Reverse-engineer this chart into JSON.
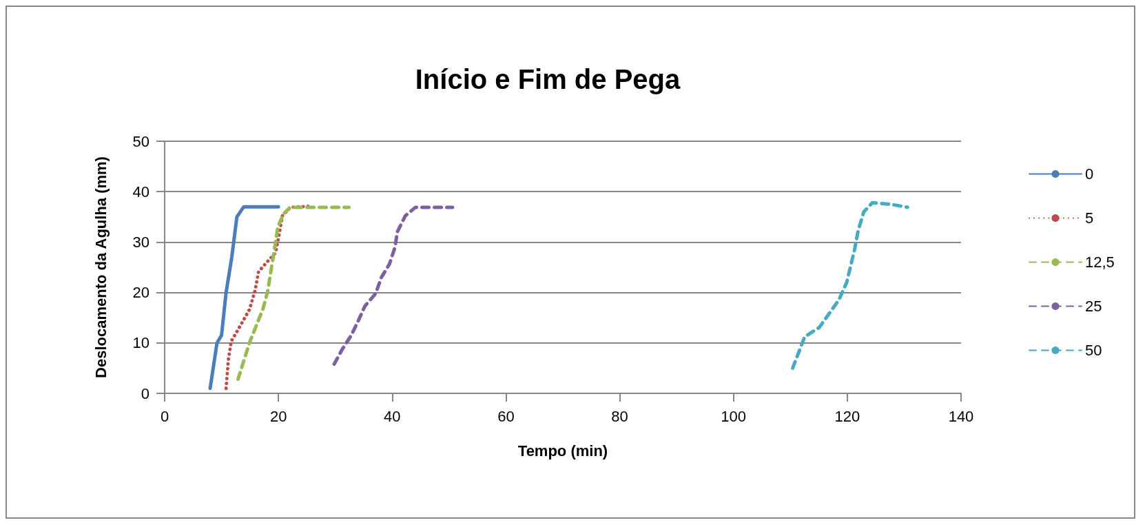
{
  "chart_data": {
    "type": "line",
    "title": "Início e Fim de Pega",
    "xlabel": "Tempo (min)",
    "ylabel": "Deslocamento da Agulha (mm)",
    "xlim": [
      0,
      140
    ],
    "xticks": [
      0,
      20,
      40,
      60,
      80,
      100,
      120,
      140
    ],
    "ylim": [
      0,
      50
    ],
    "yticks": [
      0,
      10,
      20,
      30,
      40,
      50
    ],
    "grid": "y",
    "legend": "right",
    "marker": "none",
    "series": [
      {
        "name": "0",
        "color": "#4a7ebb",
        "line_style": "solid",
        "x": [
          8,
          9.2,
          10,
          10.8,
          11.8,
          12.7,
          13.9,
          16,
          20
        ],
        "values": [
          1,
          10,
          11.5,
          20,
          27,
          35,
          37,
          37,
          37
        ]
      },
      {
        "name": "5",
        "color": "#be4b48",
        "line_style": "dotted",
        "x": [
          10.8,
          11.2,
          11.7,
          13.3,
          14.9,
          15.9,
          16.5,
          17.5,
          19.5,
          20.1,
          20.7,
          22.1,
          25.4
        ],
        "values": [
          1,
          6.6,
          10.3,
          13.4,
          16.6,
          20.4,
          24.1,
          25.4,
          27.9,
          31.3,
          35.2,
          36.9,
          37.1
        ]
      },
      {
        "name": "12,5",
        "color": "#98b954",
        "line_style": "dashed",
        "x": [
          12.9,
          14.9,
          17.3,
          18.1,
          18.9,
          19.5,
          19.9,
          20.9,
          22.1,
          32.4
        ],
        "values": [
          2.8,
          10,
          16.8,
          20.2,
          25.8,
          30,
          33,
          35.6,
          36.9,
          36.9
        ]
      },
      {
        "name": "25",
        "color": "#7d60a0",
        "line_style": "dashed",
        "x": [
          29.8,
          31.2,
          32.8,
          34,
          35.2,
          37.1,
          38.1,
          39.5,
          40.5,
          40.9,
          42.3,
          44.1,
          50.6
        ],
        "values": [
          5.8,
          8.7,
          11.5,
          14.3,
          17.3,
          19.8,
          23,
          25.6,
          29,
          32,
          35.2,
          36.9,
          36.9
        ]
      },
      {
        "name": "50",
        "color": "#46aac5",
        "line_style": "dashed",
        "x": [
          110.4,
          112.5,
          115.1,
          118.5,
          119.9,
          121.3,
          121.9,
          122.9,
          124.4,
          127.6,
          130.6
        ],
        "values": [
          5,
          11.2,
          13.1,
          18.5,
          22,
          28.6,
          32.2,
          36,
          37.8,
          37.5,
          36.9
        ]
      }
    ]
  }
}
